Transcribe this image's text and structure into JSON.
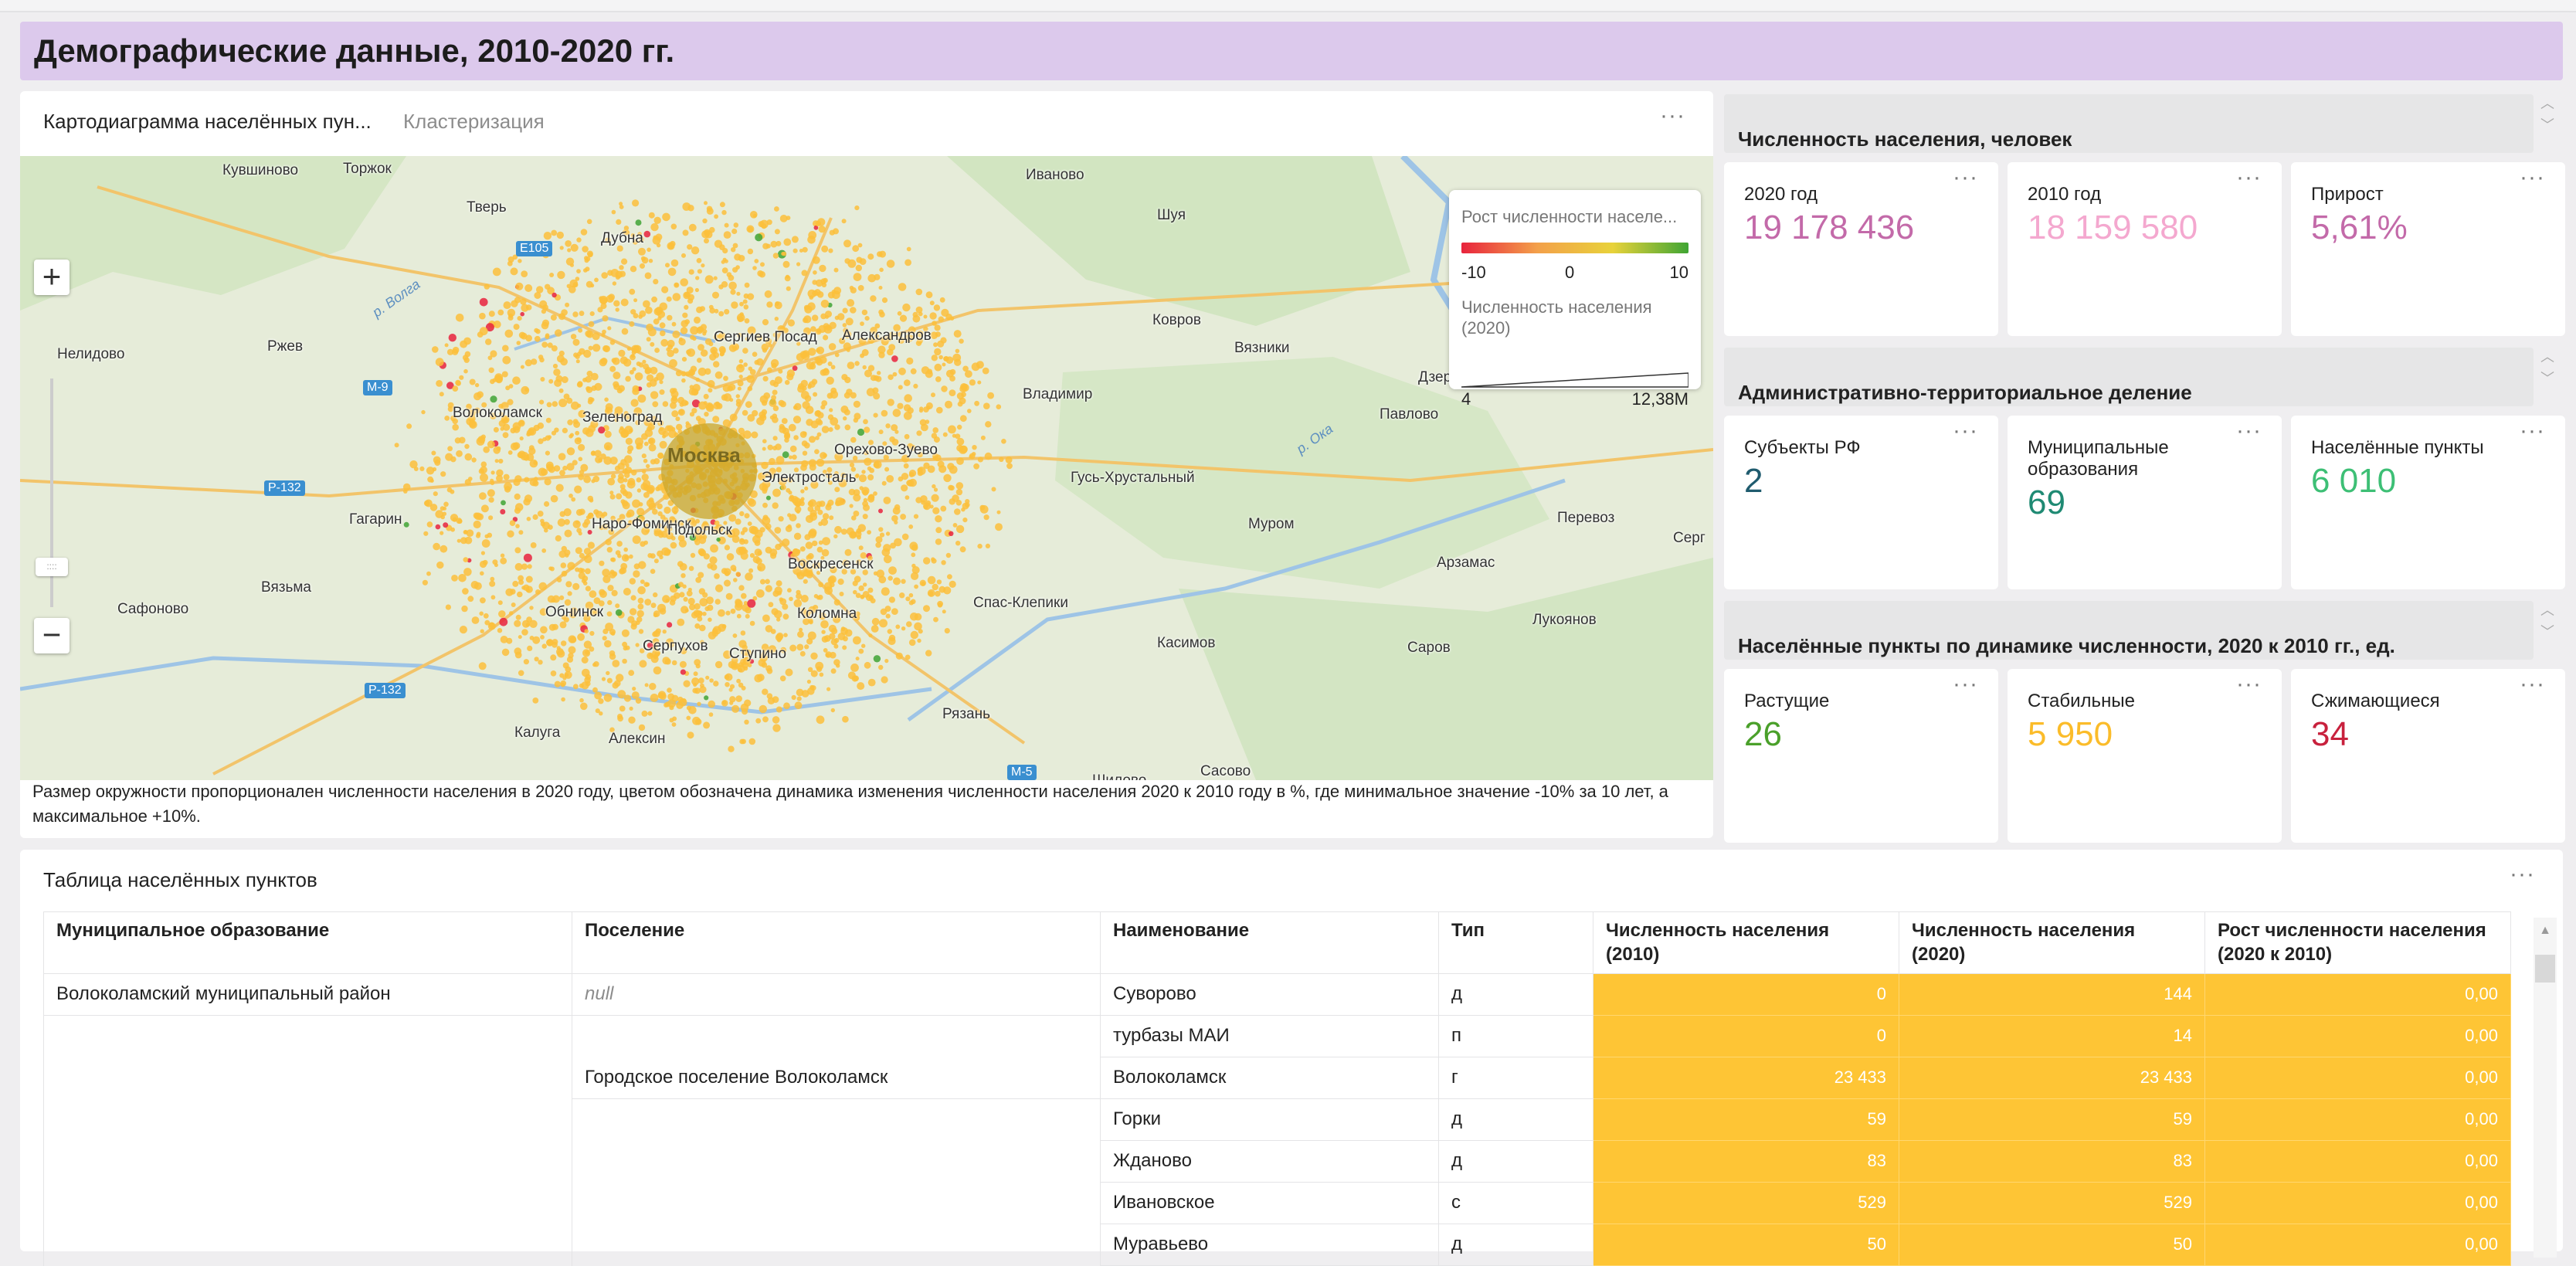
{
  "header": {
    "title": "Демографические данные, 2010-2020 гг."
  },
  "map_panel": {
    "tabs": [
      {
        "label": "Картодиаграмма населённых пун...",
        "active": true
      },
      {
        "label": "Кластеризация",
        "active": false
      }
    ],
    "menu_icon": "more-dots-icon",
    "zoom": {
      "in_label": "+",
      "out_label": "−",
      "handle_label": "::::"
    },
    "legend": {
      "color_title": "Рост численности населе...",
      "color_min": "-10",
      "color_mid": "0",
      "color_max": "10",
      "size_title": "Численность населения (2020)",
      "size_min": "4",
      "size_max": "12,38M"
    },
    "place_labels": [
      "Кувшиново",
      "Торжок",
      "Иваново",
      "Тверь",
      "Шуя",
      "Дубна",
      "E105",
      "Ковров",
      "Нелидово",
      "Ржев",
      "Сергиев Посад",
      "Александров",
      "Вязники",
      "Дзер",
      "M-9",
      "Владимир",
      "Волоколамск",
      "Зеленоград",
      "Москва",
      "Орехово-Зуево",
      "Павлово",
      "P-132",
      "Электросталь",
      "Гусь-Хрустальный",
      "Гагарин",
      "Наро-Фоминск",
      "Подольск",
      "Муром",
      "Перевоз",
      "Серг",
      "Арзамас",
      "Вязьма",
      "Воскресенск",
      "Сафоново",
      "Обнинск",
      "Коломна",
      "Спас-Клепики",
      "Лукоянов",
      "Серпухов",
      "Ступино",
      "Касимов",
      "Саров",
      "P-132",
      "Калуга",
      "Алексин",
      "Рязань",
      "M-5",
      "Сасово",
      "Шилово",
      "р. Волга",
      "р. Ока"
    ],
    "caption": "Размер окружности пропорционален численности населения в 2020 году, цветом обозначена динамика изменения численности населения 2020 к 2010 году в %, где минимальное значение -10% за 10 лет, а максимальное +10%."
  },
  "kpi_groups": [
    {
      "title": "Численность населения, человек",
      "cards": [
        {
          "label": "2020 год",
          "value": "19 178 436",
          "color": "#c36aa9"
        },
        {
          "label": "2010 год",
          "value": "18 159 580",
          "color": "#f4a8cf"
        },
        {
          "label": "Прирост",
          "value": "5,61%",
          "color": "#c36aa9"
        }
      ]
    },
    {
      "title": "Административно-территориальное деление",
      "cards": [
        {
          "label": "Субъекты РФ",
          "value": "2",
          "color": "#1f5b6e"
        },
        {
          "label": "Муниципальные образования",
          "value": "69",
          "color": "#1f8a73"
        },
        {
          "label": "Населённые пункты",
          "value": "6 010",
          "color": "#3dbf75"
        }
      ]
    },
    {
      "title": "Населённые пункты по динамике численности, 2020 к 2010 гг., ед.",
      "cards": [
        {
          "label": "Растущие",
          "value": "26",
          "color": "#4aa02a"
        },
        {
          "label": "Стабильные",
          "value": "5 950",
          "color": "#fbbc2a"
        },
        {
          "label": "Сжимающиеся",
          "value": "34",
          "color": "#c8213d"
        }
      ]
    }
  ],
  "table": {
    "title": "Таблица населённых пунктов",
    "columns": [
      "Муниципальное образование",
      "Поселение",
      "Наименование",
      "Тип",
      "Численность населения (2010)",
      "Численность населения (2020)",
      "Рост численности населения (2020 к 2010)"
    ],
    "rows": [
      {
        "mo": "Волоколамский муниципальный район",
        "pos": "null",
        "name": "Суворово",
        "type": "д",
        "p2010": "0",
        "p2020": "144",
        "growth": "0,00"
      },
      {
        "mo": "",
        "pos": "",
        "name": "турбазы МАИ",
        "type": "п",
        "p2010": "0",
        "p2020": "14",
        "growth": "0,00"
      },
      {
        "mo": "",
        "pos": "Городское поселение Волоколамск",
        "name": "Волоколамск",
        "type": "г",
        "p2010": "23 433",
        "p2020": "23 433",
        "growth": "0,00"
      },
      {
        "mo": "",
        "pos": "",
        "name": "Горки",
        "type": "д",
        "p2010": "59",
        "p2020": "59",
        "growth": "0,00"
      },
      {
        "mo": "",
        "pos": "",
        "name": "Жданово",
        "type": "д",
        "p2010": "83",
        "p2020": "83",
        "growth": "0,00"
      },
      {
        "mo": "",
        "pos": "",
        "name": "Ивановское",
        "type": "с",
        "p2010": "529",
        "p2020": "529",
        "growth": "0,00"
      },
      {
        "mo": "",
        "pos": "",
        "name": "Муравьево",
        "type": "д",
        "p2010": "50",
        "p2020": "50",
        "growth": "0,00"
      }
    ]
  }
}
